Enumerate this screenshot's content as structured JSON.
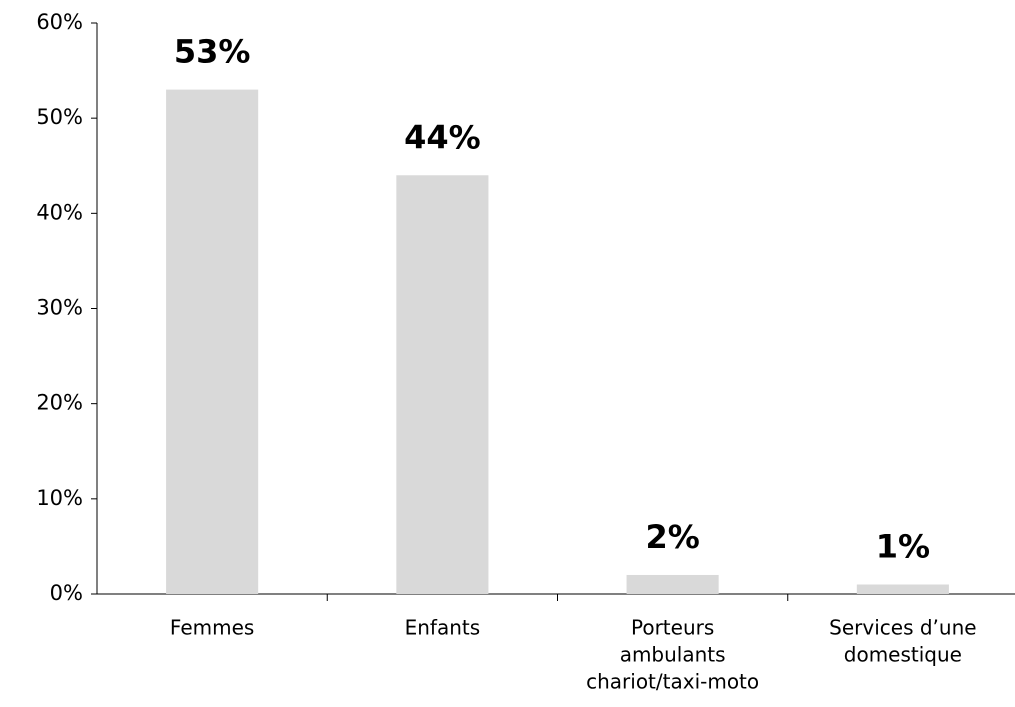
{
  "chart_data": {
    "type": "bar",
    "categories": [
      [
        "Femmes"
      ],
      [
        "Enfants"
      ],
      [
        "Porteurs",
        "ambulants",
        "chariot/taxi-moto"
      ],
      [
        "Services d’une",
        "domestique"
      ]
    ],
    "values": [
      53,
      44,
      2,
      1
    ],
    "value_labels": [
      "53%",
      "44%",
      "2%",
      "1%"
    ],
    "color": "#d9d9d9",
    "ylim": [
      0,
      60
    ],
    "yticks": [
      {
        "value": 0,
        "label": "0%"
      },
      {
        "value": 10,
        "label": "10%"
      },
      {
        "value": 20,
        "label": "20%"
      },
      {
        "value": 30,
        "label": "30%"
      },
      {
        "value": 40,
        "label": "40%"
      },
      {
        "value": 50,
        "label": "50%"
      },
      {
        "value": 60,
        "label": "60%"
      }
    ],
    "grid": false
  }
}
